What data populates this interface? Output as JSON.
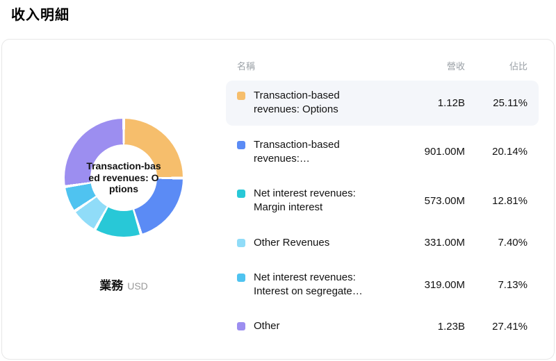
{
  "page": {
    "title": "收入明細"
  },
  "chart": {
    "center_label": "Transaction-based revenues: Options",
    "caption": "業務",
    "unit": "USD"
  },
  "table": {
    "headers": {
      "name": "名稱",
      "revenue": "營收",
      "share": "佔比"
    },
    "rows": [
      {
        "name": "Transaction-based revenues: Options",
        "revenue": "1.12B",
        "share": "25.11%",
        "color": "#F6BE6C",
        "highlight": true
      },
      {
        "name": "Transaction-based revenues:…",
        "revenue": "901.00M",
        "share": "20.14%",
        "color": "#5B8BF5",
        "highlight": false
      },
      {
        "name": "Net interest revenues: Margin interest",
        "revenue": "573.00M",
        "share": "12.81%",
        "color": "#28C8D7",
        "highlight": false
      },
      {
        "name": "Other Revenues",
        "revenue": "331.00M",
        "share": "7.40%",
        "color": "#90DCF8",
        "highlight": false
      },
      {
        "name": "Net interest revenues: Interest on segregate…",
        "revenue": "319.00M",
        "share": "7.13%",
        "color": "#4FC3F0",
        "highlight": false
      },
      {
        "name": "Other",
        "revenue": "1.23B",
        "share": "27.41%",
        "color": "#9C8EF0",
        "highlight": false
      }
    ]
  },
  "chart_data": {
    "type": "pie",
    "donut": true,
    "title": "收入明細",
    "center_label": "Transaction-based revenues: Options",
    "unit": "USD",
    "legend_position": "right",
    "categories": [
      "Transaction-based revenues: Options",
      "Transaction-based revenues:…",
      "Net interest revenues: Margin interest",
      "Other Revenues",
      "Net interest revenues: Interest on segregate…",
      "Other"
    ],
    "values": [
      25.11,
      20.14,
      12.81,
      7.4,
      7.13,
      27.41
    ],
    "revenues": [
      "1.12B",
      "901.00M",
      "573.00M",
      "331.00M",
      "319.00M",
      "1.23B"
    ],
    "colors": [
      "#F6BE6C",
      "#5B8BF5",
      "#28C8D7",
      "#90DCF8",
      "#4FC3F0",
      "#9C8EF0"
    ]
  }
}
